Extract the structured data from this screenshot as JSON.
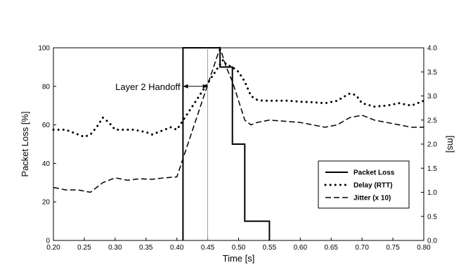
{
  "chart_data": {
    "type": "line",
    "xlabel": "Time  [s]",
    "ylabel_left": "Packet Loss [%]",
    "ylabel_right": "[ms]",
    "xlim": [
      0.2,
      0.8
    ],
    "ylim_left": [
      0,
      100
    ],
    "ylim_right": [
      0,
      4.0
    ],
    "x_ticks": [
      "0.20",
      "0.25",
      "0.30",
      "0.35",
      "0.40",
      "0.45",
      "0.50",
      "0.55",
      "0.60",
      "0.65",
      "0.70",
      "0.75",
      "0.80"
    ],
    "y_left_ticks": [
      "0",
      "20",
      "40",
      "60",
      "80",
      "100"
    ],
    "y_right_ticks": [
      "0.0",
      "0.5",
      "1.0",
      "1.5",
      "2.0",
      "2.5",
      "3.0",
      "3.5",
      "4.0"
    ],
    "grid": false,
    "legend_position": "bottom-right",
    "annotation": {
      "text": "Layer 2 Handoff",
      "x_start": 0.41,
      "x_end": 0.45,
      "y": 80
    },
    "series": [
      {
        "name": "Packet Loss",
        "axis": "left",
        "style": "solid",
        "x": [
          0.41,
          0.41,
          0.47,
          0.47,
          0.48,
          0.48,
          0.49,
          0.49,
          0.5,
          0.5,
          0.51,
          0.51,
          0.55,
          0.55
        ],
        "y": [
          0,
          100,
          100,
          90,
          90,
          90,
          90,
          50,
          50,
          50,
          50,
          10,
          10,
          0
        ]
      },
      {
        "name": "Delay (RTT)",
        "axis": "right",
        "style": "dotted",
        "x": [
          0.2,
          0.22,
          0.24,
          0.25,
          0.26,
          0.27,
          0.28,
          0.29,
          0.3,
          0.31,
          0.33,
          0.35,
          0.36,
          0.37,
          0.38,
          0.39,
          0.4,
          0.475,
          0.48,
          0.49,
          0.5,
          0.51,
          0.52,
          0.53,
          0.54,
          0.56,
          0.58,
          0.6,
          0.62,
          0.64,
          0.66,
          0.67,
          0.68,
          0.69,
          0.7,
          0.72,
          0.74,
          0.76,
          0.78,
          0.8
        ],
        "y": [
          2.3,
          2.3,
          2.2,
          2.15,
          2.2,
          2.35,
          2.55,
          2.45,
          2.3,
          2.3,
          2.3,
          2.25,
          2.2,
          2.25,
          2.3,
          2.35,
          2.3,
          3.75,
          3.65,
          3.6,
          3.5,
          3.3,
          3.0,
          2.92,
          2.9,
          2.9,
          2.9,
          2.88,
          2.87,
          2.85,
          2.9,
          2.98,
          3.05,
          3.02,
          2.85,
          2.78,
          2.8,
          2.85,
          2.8,
          2.9
        ]
      },
      {
        "name": "Jitter (x 10)",
        "axis": "right",
        "style": "dashed",
        "x": [
          0.2,
          0.22,
          0.24,
          0.26,
          0.27,
          0.28,
          0.29,
          0.3,
          0.32,
          0.34,
          0.36,
          0.38,
          0.4,
          0.47,
          0.48,
          0.49,
          0.5,
          0.51,
          0.52,
          0.53,
          0.55,
          0.6,
          0.64,
          0.66,
          0.68,
          0.7,
          0.72,
          0.74,
          0.76,
          0.78,
          0.8
        ],
        "y": [
          1.1,
          1.05,
          1.05,
          1.0,
          1.1,
          1.2,
          1.25,
          1.3,
          1.25,
          1.28,
          1.27,
          1.3,
          1.32,
          4.0,
          3.6,
          3.3,
          2.9,
          2.5,
          2.4,
          2.45,
          2.5,
          2.45,
          2.35,
          2.4,
          2.55,
          2.6,
          2.5,
          2.45,
          2.4,
          2.35,
          2.35
        ]
      }
    ]
  }
}
